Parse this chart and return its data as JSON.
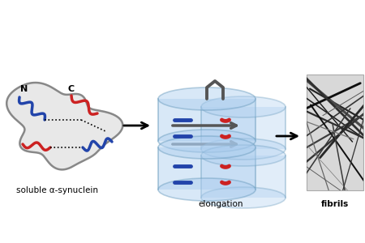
{
  "background_color": "#ffffff",
  "label_soluble": "soluble α-synuclein",
  "label_elongation": "elongation",
  "label_fibrils": "fibrils",
  "label_N": "N",
  "label_C": "C",
  "arrow_color": "#000000",
  "blue_color": "#2244aa",
  "red_color": "#cc2222",
  "gray_color": "#888888",
  "gray_dark": "#555555",
  "cylinder_blue": "#aaccee",
  "cylinder_edge": "#6699bb",
  "figsize": [
    4.5,
    3.0
  ],
  "dpi": 100
}
